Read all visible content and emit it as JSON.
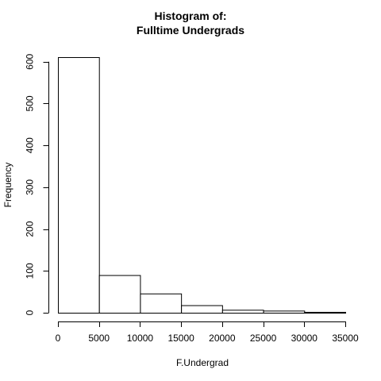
{
  "chart_data": {
    "type": "bar",
    "title": [
      "Histogram of:",
      "Fulltime Undergrads"
    ],
    "xlabel": "F.Undergrad",
    "ylabel": "Frequency",
    "bins": [
      {
        "from": 0,
        "to": 5000,
        "count": 611
      },
      {
        "from": 5000,
        "to": 10000,
        "count": 90
      },
      {
        "from": 10000,
        "to": 15000,
        "count": 46
      },
      {
        "from": 15000,
        "to": 20000,
        "count": 18
      },
      {
        "from": 20000,
        "to": 25000,
        "count": 7
      },
      {
        "from": 25000,
        "to": 30000,
        "count": 5
      },
      {
        "from": 30000,
        "to": 35000,
        "count": 2
      }
    ],
    "xticks": [
      0,
      5000,
      10000,
      15000,
      20000,
      25000,
      30000,
      35000
    ],
    "yticks": [
      0,
      100,
      200,
      300,
      400,
      500,
      600
    ],
    "xlim": [
      0,
      35000
    ],
    "ylim": [
      0,
      611
    ],
    "grid": false,
    "colors": {
      "bar_fill": "#ffffff",
      "bar_stroke": "#000000",
      "axis": "#000000"
    }
  }
}
